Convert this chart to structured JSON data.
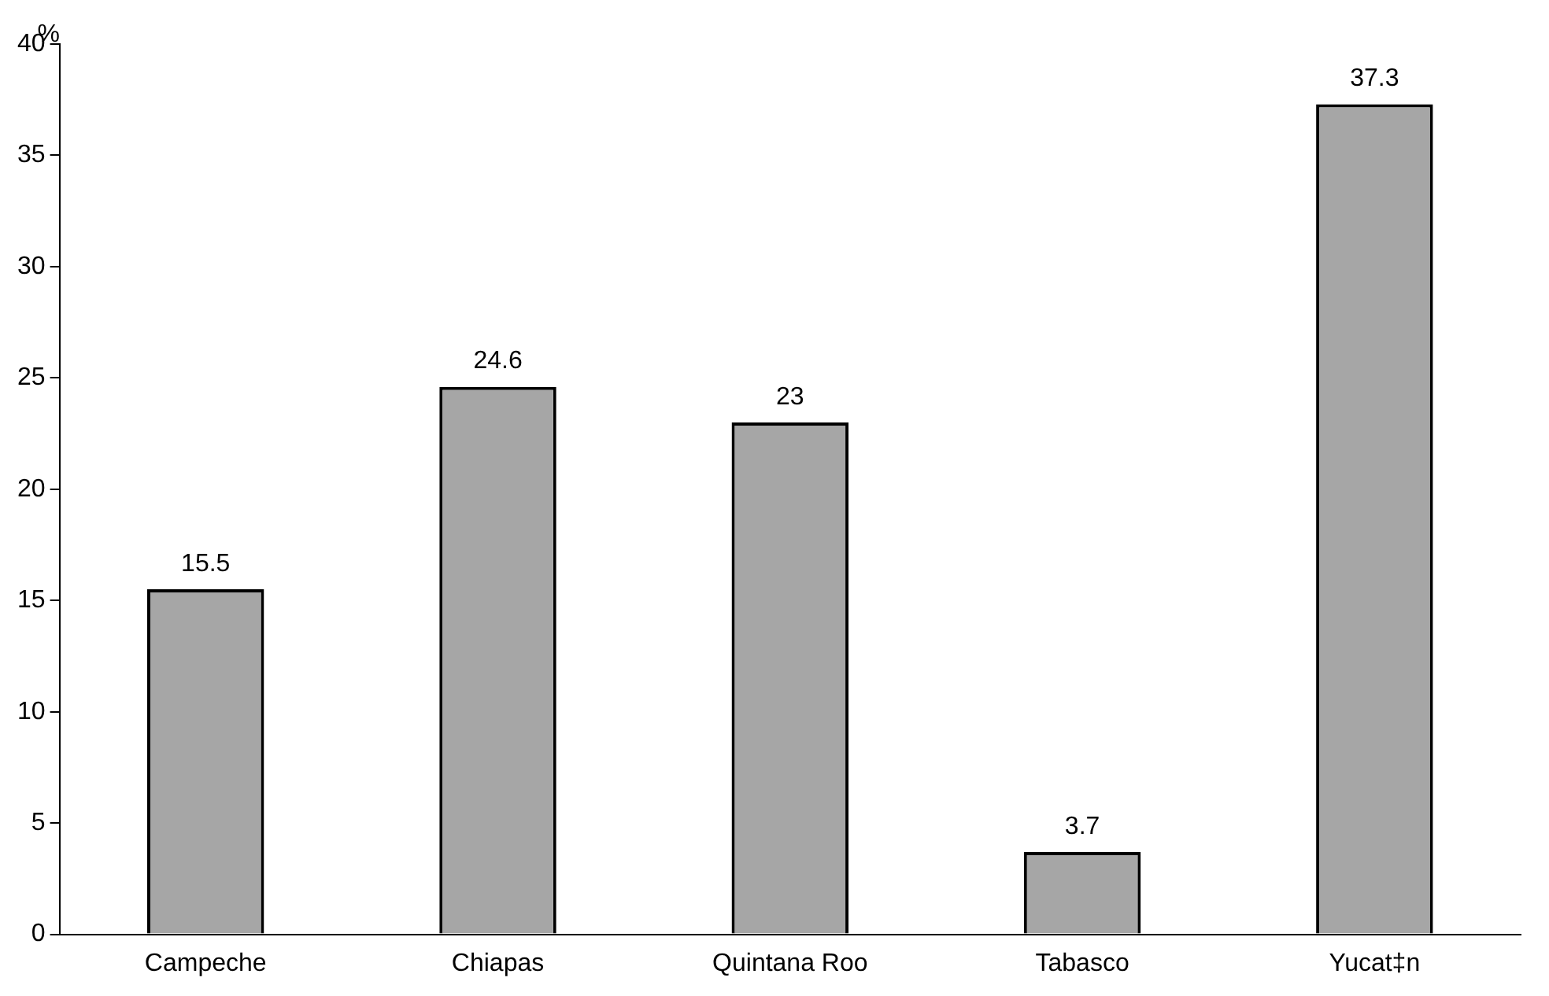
{
  "chart_data": {
    "type": "bar",
    "ylabel": "%",
    "categories": [
      "Campeche",
      "Chiapas",
      "Quintana Roo",
      "Tabasco",
      "Yucat‡n"
    ],
    "values": [
      15.5,
      24.6,
      23,
      3.7,
      37.3
    ],
    "color": "#a6a6a6",
    "ylim": [
      0,
      40
    ],
    "yticks": [
      0,
      5,
      10,
      15,
      20,
      25,
      30,
      35,
      40
    ],
    "grid": false,
    "legend": false,
    "data_labels": true
  }
}
